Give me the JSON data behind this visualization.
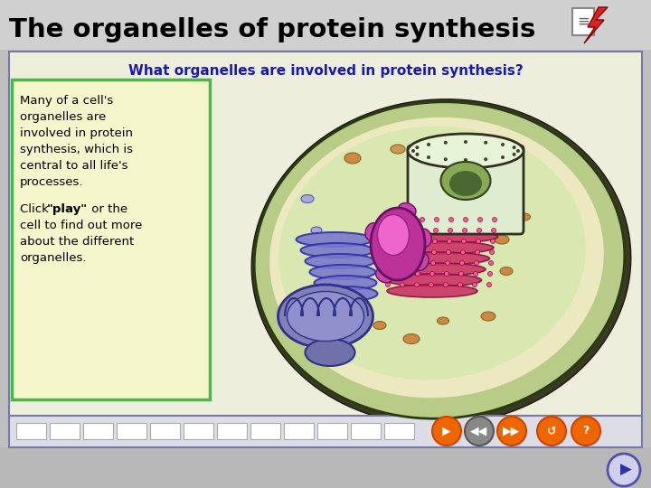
{
  "title": "The organelles of protein synthesis",
  "subtitle": "What organelles are involved in protein synthesis?",
  "subtitle_color": "#1a1aaa",
  "bg_outer": "#c0bfc0",
  "panel_bg": "#eeeedd",
  "panel_border": "#7777aa",
  "textbox_bg": "#f5f5cc",
  "textbox_border": "#44bb44",
  "text1_line1": "Many of a cell's",
  "text1_line2": "organelles are",
  "text1_line3": "involved in protein",
  "text1_line4": "synthesis, which is",
  "text1_line5": "central to all life's",
  "text1_line6": "processes.",
  "text2_prefix": "Click ",
  "text2_bold": "\"play\"",
  "text2_suffix": " or the",
  "text2_line2": "cell to find out more",
  "text2_line3": "about the different",
  "text2_line4": "organelles.",
  "nav_bg": "#dddde8",
  "nav_orange": "#ee6600",
  "nav_gray": "#888888",
  "cell_outer": "#8aaa50",
  "cell_wall": "#b8cc88",
  "cell_inner": "#d8e8b0",
  "cell_cream": "#ece8c0",
  "nucleus_body": "#c8dca0",
  "nucleus_top": "#e0ecc0",
  "nucleolus": "#88aa55",
  "nucleolus_dark": "#4a6830",
  "er_pink": "#cc3366",
  "er_dark": "#881144",
  "golgi_blue": "#7878cc",
  "golgi_dark": "#3030aa",
  "mito_purple": "#7878aa",
  "mito_dark": "#303088",
  "pink_org": "#dd44cc",
  "pink_light": "#ee88dd"
}
